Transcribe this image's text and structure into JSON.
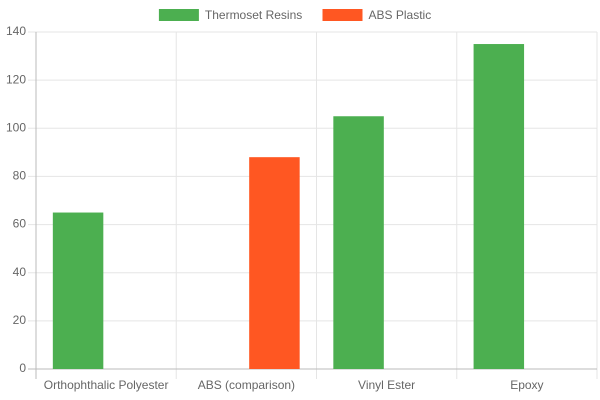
{
  "chart_data": {
    "type": "bar",
    "categories": [
      "Orthophthalic Polyester",
      "ABS (comparison)",
      "Vinyl Ester",
      "Epoxy"
    ],
    "series": [
      {
        "name": "Thermoset Resins",
        "color": "#4caf50",
        "values": [
          65,
          null,
          105,
          135
        ]
      },
      {
        "name": "ABS Plastic",
        "color": "#ff5722",
        "values": [
          null,
          88,
          null,
          null
        ]
      }
    ],
    "ylim": [
      0,
      140
    ],
    "yticks": [
      0,
      20,
      40,
      60,
      80,
      100,
      120,
      140
    ],
    "grid": true,
    "legend": "top"
  }
}
